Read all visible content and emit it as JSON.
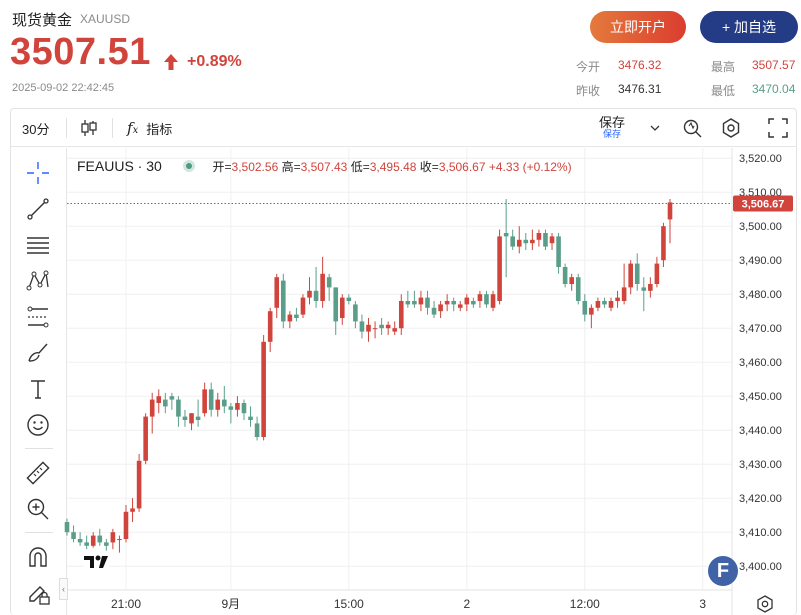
{
  "header": {
    "title": "现货黄金",
    "symbol": "XAUUSD",
    "price": "3507.51",
    "change_pct": "+0.89%",
    "datetime": "2025-09-02 22:42:45",
    "buttons": {
      "open_account": "立即开户",
      "add_watchlist": "+ 加自选"
    },
    "stats": {
      "open_label": "今开",
      "open_value": "3476.32",
      "high_label": "最高",
      "high_value": "3507.57",
      "prev_close_label": "昨收",
      "prev_close_value": "3476.31",
      "low_label": "最低",
      "low_value": "3470.04"
    }
  },
  "toolbar": {
    "interval": "30分",
    "indicators_label": "指标",
    "save_label": "保存",
    "save_sub_label": "保存"
  },
  "legend": {
    "symbol_interval": "FEAUUS · 30",
    "open_label": "开",
    "open_value": "3,502.56",
    "high_label": "高",
    "high_value": "3,507.43",
    "low_label": "低",
    "low_value": "3,495.48",
    "close_label": "收",
    "close_value": "3,506.67",
    "change": "+4.33 (+0.12%)"
  },
  "colors": {
    "up": "#d0443c",
    "down": "#5a9e89",
    "brand_blue": "#243b86"
  },
  "icons": [
    "crosshair-icon",
    "trend-line-icon",
    "fib-icon",
    "pattern-icon",
    "projection-icon",
    "brush-icon",
    "text-icon",
    "emoji-icon",
    "ruler-icon",
    "zoom-icon",
    "magnet-icon",
    "lock-pencil-icon"
  ],
  "chart_data": {
    "type": "candlestick",
    "interval": "30",
    "last_price_label": "3,506.67",
    "last_price": 3506.67,
    "ylim": [
      3393,
      3523
    ],
    "y_ticks": [
      3400,
      3410,
      3420,
      3430,
      3440,
      3450,
      3460,
      3470,
      3480,
      3490,
      3500,
      3510,
      3520
    ],
    "y_tick_labels": [
      "3,400.00",
      "3,410.00",
      "3,420.00",
      "3,430.00",
      "3,440.00",
      "3,450.00",
      "3,460.00",
      "3,470.00",
      "3,480.00",
      "3,490.00",
      "3,500.00",
      "3,510.00",
      "3,520.00"
    ],
    "x_labels": [
      {
        "index": 9,
        "label": "21:00"
      },
      {
        "index": 25,
        "label": "9月"
      },
      {
        "index": 43,
        "label": "15:00"
      },
      {
        "index": 61,
        "label": "2"
      },
      {
        "index": 79,
        "label": "12:00"
      },
      {
        "index": 97,
        "label": "3"
      }
    ],
    "candles": [
      [
        3413,
        3414,
        3409,
        3410
      ],
      [
        3410,
        3412,
        3407,
        3408
      ],
      [
        3408,
        3410,
        3406,
        3407
      ],
      [
        3407,
        3409,
        3405,
        3406
      ],
      [
        3406,
        3410,
        3405,
        3409
      ],
      [
        3409,
        3411,
        3406,
        3407
      ],
      [
        3407,
        3408,
        3404,
        3406
      ],
      [
        3407,
        3411,
        3405,
        3410
      ],
      [
        3408,
        3409,
        3404,
        3408
      ],
      [
        3408,
        3418,
        3407,
        3416
      ],
      [
        3416,
        3420,
        3413,
        3417
      ],
      [
        3417,
        3433,
        3416,
        3431
      ],
      [
        3431,
        3445,
        3430,
        3444
      ],
      [
        3444,
        3451,
        3439,
        3449
      ],
      [
        3448,
        3452,
        3445,
        3450
      ],
      [
        3449,
        3451,
        3445,
        3447
      ],
      [
        3450,
        3451,
        3446,
        3449
      ],
      [
        3449,
        3450,
        3441,
        3444
      ],
      [
        3444,
        3446,
        3441,
        3443
      ],
      [
        3442,
        3445,
        3440,
        3445
      ],
      [
        3444,
        3449,
        3441,
        3443
      ],
      [
        3445,
        3454,
        3444,
        3452
      ],
      [
        3452,
        3454,
        3444,
        3446
      ],
      [
        3446,
        3451,
        3444,
        3449
      ],
      [
        3449,
        3453,
        3445,
        3447
      ],
      [
        3447,
        3448,
        3442,
        3446
      ],
      [
        3446,
        3450,
        3444,
        3448
      ],
      [
        3448,
        3449,
        3443,
        3445
      ],
      [
        3444,
        3447,
        3441,
        3443
      ],
      [
        3442,
        3444,
        3437,
        3438
      ],
      [
        3438,
        3468,
        3437,
        3466
      ],
      [
        3466,
        3476,
        3463,
        3475
      ],
      [
        3476,
        3486,
        3473,
        3485
      ],
      [
        3484,
        3486,
        3470,
        3472
      ],
      [
        3472,
        3475,
        3470,
        3474
      ],
      [
        3474,
        3476,
        3472,
        3473
      ],
      [
        3474,
        3480,
        3473,
        3479
      ],
      [
        3479,
        3485,
        3477,
        3481
      ],
      [
        3481,
        3488,
        3476,
        3478
      ],
      [
        3478,
        3491,
        3476,
        3486
      ],
      [
        3485,
        3486,
        3478,
        3482
      ],
      [
        3482,
        3482,
        3468,
        3472
      ],
      [
        3473,
        3480,
        3471,
        3479
      ],
      [
        3479,
        3480,
        3477,
        3478
      ],
      [
        3477,
        3478,
        3470,
        3472
      ],
      [
        3472,
        3474,
        3467,
        3469
      ],
      [
        3469,
        3473,
        3466,
        3471
      ],
      [
        3470,
        3472,
        3467,
        3470
      ],
      [
        3471,
        3473,
        3468,
        3470
      ],
      [
        3470,
        3472,
        3468,
        3471
      ],
      [
        3469,
        3472,
        3468,
        3470
      ],
      [
        3470,
        3480,
        3468,
        3478
      ],
      [
        3478,
        3481,
        3476,
        3477
      ],
      [
        3478,
        3481,
        3476,
        3477
      ],
      [
        3477,
        3481,
        3475,
        3479
      ],
      [
        3479,
        3481,
        3474,
        3476
      ],
      [
        3476,
        3478,
        3473,
        3474
      ],
      [
        3475,
        3478,
        3473,
        3477
      ],
      [
        3477,
        3480,
        3475,
        3478
      ],
      [
        3478,
        3479,
        3475,
        3477
      ],
      [
        3476,
        3478,
        3475,
        3477
      ],
      [
        3477,
        3480,
        3475,
        3479
      ],
      [
        3478,
        3479,
        3476,
        3477
      ],
      [
        3478,
        3481,
        3476,
        3480
      ],
      [
        3480,
        3481,
        3476,
        3477
      ],
      [
        3476,
        3481,
        3475,
        3480
      ],
      [
        3478,
        3499,
        3477,
        3497
      ],
      [
        3498,
        3508,
        3485,
        3497
      ],
      [
        3497,
        3499,
        3493,
        3494
      ],
      [
        3494,
        3500,
        3492,
        3496
      ],
      [
        3496,
        3498,
        3493,
        3495
      ],
      [
        3495,
        3499,
        3493,
        3496
      ],
      [
        3496,
        3499,
        3494,
        3498
      ],
      [
        3498,
        3499,
        3493,
        3494
      ],
      [
        3495,
        3498,
        3493,
        3497
      ],
      [
        3497,
        3498,
        3486,
        3488
      ],
      [
        3488,
        3489,
        3482,
        3483
      ],
      [
        3483,
        3486,
        3481,
        3485
      ],
      [
        3485,
        3486,
        3477,
        3478
      ],
      [
        3478,
        3480,
        3472,
        3474
      ],
      [
        3474,
        3477,
        3470,
        3476
      ],
      [
        3476,
        3479,
        3475,
        3478
      ],
      [
        3478,
        3479,
        3476,
        3477
      ],
      [
        3476,
        3479,
        3475,
        3478
      ],
      [
        3478,
        3481,
        3476,
        3479
      ],
      [
        3478,
        3489,
        3477,
        3482
      ],
      [
        3482,
        3490,
        3480,
        3489
      ],
      [
        3489,
        3492,
        3481,
        3483
      ],
      [
        3482,
        3485,
        3475,
        3481
      ],
      [
        3481,
        3485,
        3479,
        3483
      ],
      [
        3483,
        3491,
        3482,
        3489
      ],
      [
        3490,
        3501,
        3488,
        3500
      ],
      [
        3502,
        3508,
        3495,
        3507
      ]
    ]
  }
}
